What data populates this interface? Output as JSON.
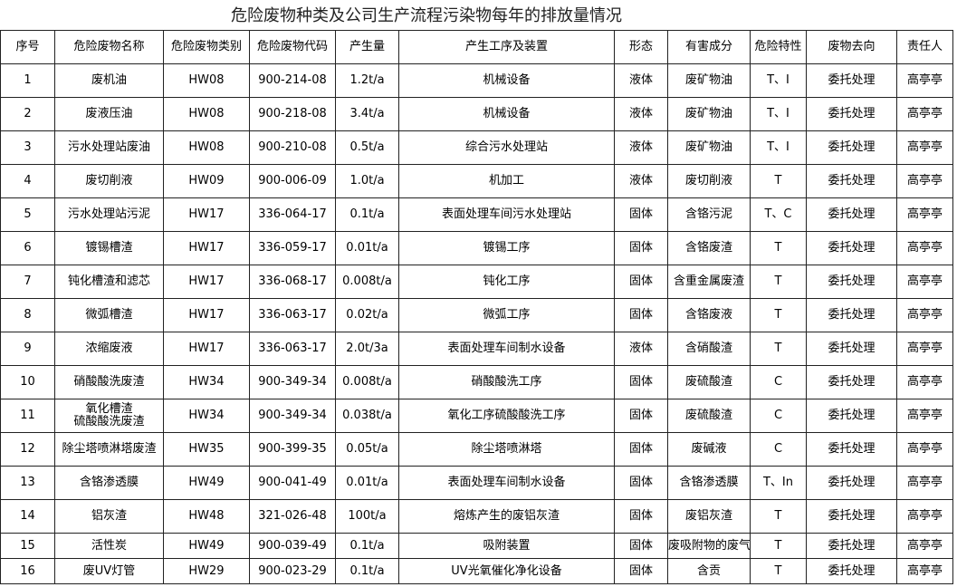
{
  "title": "危险废物种类及公司生产流程污染物每年的排放量情况",
  "table": {
    "header": [
      "序号",
      "危险废物名称",
      "危险废物类别",
      "危险废物代码",
      "产生量",
      "产生工序及装置",
      "形态",
      "有害成分",
      "危险特性",
      "废物去向",
      "责任人"
    ],
    "rows": [
      [
        "1",
        "废机油",
        "HW08",
        "900-214-08",
        "1.2t/a",
        "机械设备",
        "液体",
        "废矿物油",
        "T、I",
        "委托处理",
        "高亭亭"
      ],
      [
        "2",
        "废液压油",
        "HW08",
        "900-218-08",
        "3.4t/a",
        "机械设备",
        "液体",
        "废矿物油",
        "T、I",
        "委托处理",
        "高亭亭"
      ],
      [
        "3",
        "污水处理站废油",
        "HW08",
        "900-210-08",
        "0.5t/a",
        "综合污水处理站",
        "液体",
        "废矿物油",
        "T、I",
        "委托处理",
        "高亭亭"
      ],
      [
        "4",
        "废切削液",
        "HW09",
        "900-006-09",
        "1.0t/a",
        "机加工",
        "液体",
        "废切削液",
        "T",
        "委托处理",
        "高亭亭"
      ],
      [
        "5",
        "污水处理站污泥",
        "HW17",
        "336-064-17",
        "0.1t/a",
        "表面处理车间污水处理站",
        "固体",
        "含铬污泥",
        "T、C",
        "委托处理",
        "高亭亭"
      ],
      [
        "6",
        "镀锡槽渣",
        "HW17",
        "336-059-17",
        "0.01t/a",
        "镀锡工序",
        "固体",
        "含铬废渣",
        "T",
        "委托处理",
        "高亭亭"
      ],
      [
        "7",
        "钝化槽渣和滤芯",
        "HW17",
        "336-068-17",
        "0.008t/a",
        "钝化工序",
        "固体",
        "含重金属废渣",
        "T",
        "委托处理",
        "高亭亭"
      ],
      [
        "8",
        "微弧槽渣",
        "HW17",
        "336-063-17",
        "0.02t/a",
        "微弧工序",
        "固体",
        "含铬废液",
        "T",
        "委托处理",
        "高亭亭"
      ],
      [
        "9",
        "浓缩废液",
        "HW17",
        "336-063-17",
        "2.0t/3a",
        "表面处理车间制水设备",
        "液体",
        "含硝酸渣",
        "T",
        "委托处理",
        "高亭亭"
      ],
      [
        "10",
        "硝酸酸洗废渣",
        "HW34",
        "900-349-34",
        "0.008t/a",
        "硝酸酸洗工序",
        "固体",
        "废硫酸渣",
        "C",
        "委托处理",
        "高亭亭"
      ],
      [
        "11",
        "氧化槽渣\n硫酸酸洗废渣",
        "HW34",
        "900-349-34",
        "0.038t/a",
        "氧化工序硫酸酸洗工序",
        "固体",
        "废硫酸渣",
        "C",
        "委托处理",
        "高亭亭"
      ],
      [
        "12",
        "除尘塔喷淋塔废渣",
        "HW35",
        "900-399-35",
        "0.05t/a",
        "除尘塔喷淋塔",
        "固体",
        "废碱液",
        "C",
        "委托处理",
        "高亭亭"
      ],
      [
        "13",
        "含铬渗透膜",
        "HW49",
        "900-041-49",
        "0.01t/a",
        "表面处理车间制水设备",
        "固体",
        "含铬渗透膜",
        "T、In",
        "委托处理",
        "高亭亭"
      ],
      [
        "14",
        "铝灰渣",
        "HW48",
        "321-026-48",
        "100t/a",
        "熔炼产生的废铝灰渣",
        "固体",
        "废铝灰渣",
        "T",
        "委托处理",
        "高亭亭"
      ],
      [
        "15",
        "活性炭",
        "HW49",
        "900-039-49",
        "0.1t/a",
        "吸附装置",
        "固体",
        "废吸附物的废气",
        "T",
        "委托处理",
        "高亭亭"
      ],
      [
        "16",
        "废UV灯管",
        "HW29",
        "900-023-29",
        "0.1t/a",
        "UV光氧催化净化设备",
        "固体",
        "含贡",
        "T",
        "委托处理",
        "高亭亭"
      ]
    ]
  }
}
